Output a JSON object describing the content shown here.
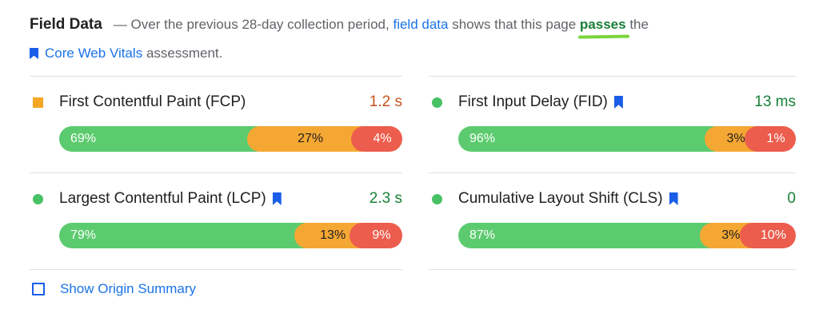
{
  "header": {
    "title": "Field Data",
    "dash": "—",
    "text_before": "Over the previous 28-day collection period,",
    "field_data_link": "field data",
    "text_middle": "shows that this page",
    "passes": "passes",
    "text_after": "the",
    "cwv_link": "Core Web Vitals",
    "assessment": "assessment."
  },
  "metrics": [
    {
      "name": "First Contentful Paint (FCP)",
      "value": "1.2 s",
      "indicator": "square-orange",
      "bookmark": false,
      "distribution": {
        "good": 69,
        "needs_improvement": 27,
        "poor": 4
      },
      "labels": {
        "good": "69%",
        "needs_improvement": "27%",
        "poor": "4%"
      }
    },
    {
      "name": "First Input Delay (FID)",
      "value": "13 ms",
      "indicator": "circle-green",
      "bookmark": true,
      "distribution": {
        "good": 96,
        "needs_improvement": 3,
        "poor": 1
      },
      "labels": {
        "good": "96%",
        "needs_improvement": "3%",
        "poor": "1%"
      }
    },
    {
      "name": "Largest Contentful Paint (LCP)",
      "value": "2.3 s",
      "indicator": "circle-green",
      "bookmark": true,
      "distribution": {
        "good": 79,
        "needs_improvement": 13,
        "poor": 9
      },
      "labels": {
        "good": "79%",
        "needs_improvement": "13%",
        "poor": "9%"
      }
    },
    {
      "name": "Cumulative Layout Shift (CLS)",
      "value": "0",
      "indicator": "circle-green",
      "bookmark": true,
      "distribution": {
        "good": 87,
        "needs_improvement": 3,
        "poor": 10
      },
      "labels": {
        "good": "87%",
        "needs_improvement": "3%",
        "poor": "10%"
      }
    }
  ],
  "origin_summary": {
    "label": "Show Origin Summary",
    "checked": false
  },
  "colors": {
    "good": "#5ccb6f",
    "needs_improvement": "#f5a733",
    "poor": "#ec5d4d",
    "link": "#1a73e8",
    "pass": "#188038",
    "value_average": "#c5521f"
  }
}
